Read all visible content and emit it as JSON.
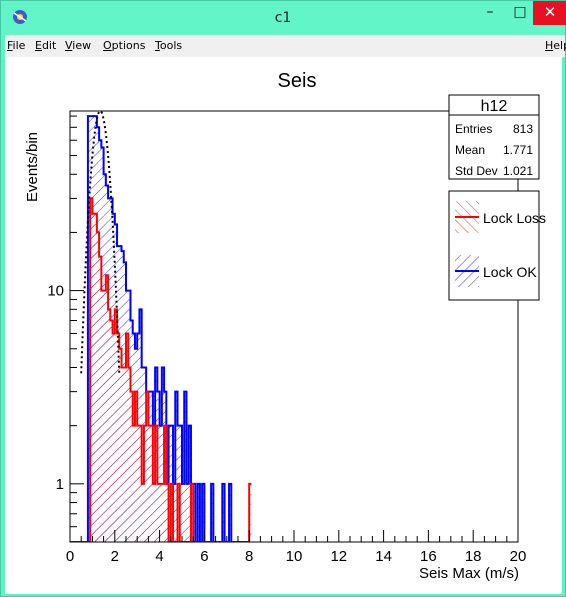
{
  "window": {
    "title": "c1",
    "controls": {
      "minimize": "–",
      "maximize": "□",
      "close": "✕"
    },
    "icon": "root-app-icon"
  },
  "menubar": {
    "items": [
      "File",
      "Edit",
      "View",
      "Options",
      "Tools"
    ],
    "help": "Help"
  },
  "stats_box": {
    "name": "h12",
    "rows": [
      {
        "label": "Entries",
        "value": "813"
      },
      {
        "label": "Mean",
        "value": "1.771"
      },
      {
        "label": "Std Dev",
        "value": "1.021"
      }
    ]
  },
  "legend": {
    "entries": [
      {
        "label": "Lock Loss",
        "color": "#ff0000",
        "hatch": "diagonal-back"
      },
      {
        "label": "Lock OK",
        "color": "#0000ff",
        "hatch": "diagonal-forward"
      }
    ]
  },
  "chart_data": {
    "type": "bar",
    "title": "Seis",
    "xlabel": "Seis Max (m/s)",
    "ylabel": "Events/bin",
    "xlim": [
      0,
      20
    ],
    "ylim": [
      0.5,
      85
    ],
    "log_y": true,
    "grid": false,
    "x_ticks": [
      0,
      2,
      4,
      6,
      8,
      10,
      12,
      14,
      16,
      18,
      20
    ],
    "y_ticks": [
      1,
      10
    ],
    "bin_width": 0.1,
    "series": [
      {
        "name": "Lock OK",
        "color": "#0000ff",
        "values": [
          0,
          0,
          0,
          0,
          0,
          0,
          0,
          0,
          80,
          80,
          80,
          80,
          70,
          60,
          55,
          40,
          35,
          30,
          30,
          25,
          22,
          17,
          17,
          16,
          14,
          10,
          10,
          7,
          6,
          5,
          6,
          8,
          4,
          4,
          3,
          3,
          3,
          2,
          4,
          3,
          2,
          4,
          3,
          1,
          2,
          2,
          1,
          3,
          2,
          2,
          1,
          3,
          1,
          2,
          1,
          1,
          0,
          1,
          0,
          1,
          0,
          0,
          0,
          1,
          0,
          0,
          0,
          0,
          1,
          0,
          0,
          1,
          0,
          0,
          0,
          0,
          0
        ]
      },
      {
        "name": "Lock Loss",
        "color": "#ff0000",
        "values": [
          0,
          0,
          0,
          0,
          0,
          0,
          0,
          0,
          0,
          30,
          25,
          25,
          20,
          15,
          10,
          10,
          12,
          8,
          7,
          6,
          8,
          6,
          5,
          4,
          4,
          6,
          4,
          3,
          2,
          3,
          2,
          2,
          1,
          2,
          3,
          2,
          2,
          1,
          2,
          1,
          1,
          1,
          2,
          1,
          0,
          1,
          0,
          0,
          1,
          0,
          0,
          0,
          0,
          0,
          1,
          0,
          0,
          0,
          0,
          0,
          0,
          0,
          0,
          0,
          0,
          0,
          0,
          0,
          0,
          0,
          0,
          0,
          0,
          0,
          0,
          0,
          0,
          0,
          0,
          0,
          1
        ]
      }
    ],
    "overlay_curve": {
      "style": "dotted",
      "color": "#000000",
      "peak_y": 85,
      "x_start": 0.5,
      "x_end": 2.2
    }
  }
}
